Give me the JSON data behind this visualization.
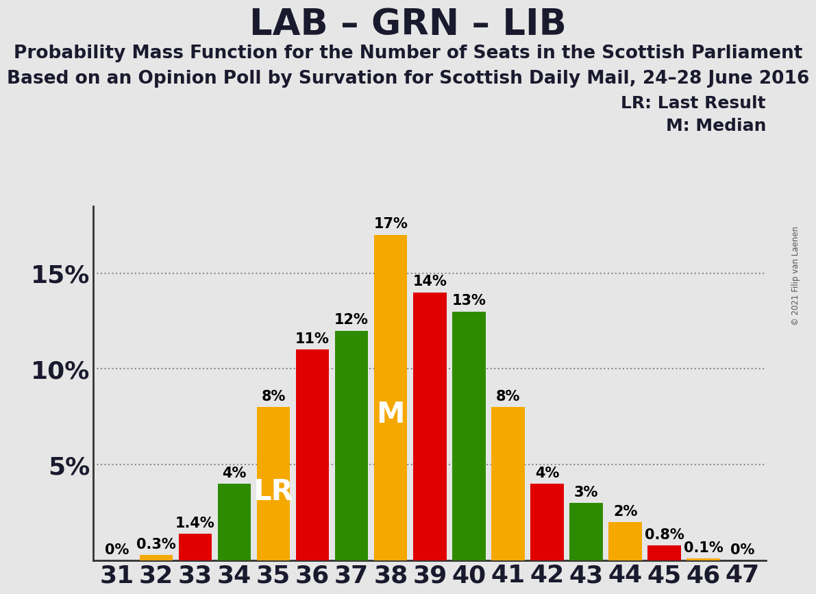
{
  "title": "LAB – GRN – LIB",
  "subtitle1": "Probability Mass Function for the Number of Seats in the Scottish Parliament",
  "subtitle2": "Based on an Opinion Poll by Survation for Scottish Daily Mail, 24–28 June 2016",
  "copyright": "© 2021 Filip van Laenen",
  "legend_lr": "LR: Last Result",
  "legend_m": "M: Median",
  "seats": [
    31,
    32,
    33,
    34,
    35,
    36,
    37,
    38,
    39,
    40,
    41,
    42,
    43,
    44,
    45,
    46,
    47
  ],
  "values": [
    0.0,
    0.3,
    1.4,
    4.0,
    8.0,
    11.0,
    12.0,
    17.0,
    14.0,
    13.0,
    8.0,
    4.0,
    3.0,
    2.0,
    0.8,
    0.1,
    0.0
  ],
  "colors": [
    "#2e8b00",
    "#f5a800",
    "#e00000",
    "#2e8b00",
    "#f5a800",
    "#e00000",
    "#2e8b00",
    "#f5a800",
    "#e00000",
    "#2e8b00",
    "#f5a800",
    "#e00000",
    "#2e8b00",
    "#f5a800",
    "#e00000",
    "#f5a800",
    "#2e8b00"
  ],
  "lr_seat": 35,
  "m_seat": 38,
  "ylim": [
    0,
    18.5
  ],
  "background_color": "#e6e6e6",
  "title_fontsize": 38,
  "subtitle_fontsize": 19,
  "bar_label_fontsize": 15,
  "axis_tick_fontsize": 26,
  "legend_fontsize": 18,
  "lr_m_fontsize": 30
}
